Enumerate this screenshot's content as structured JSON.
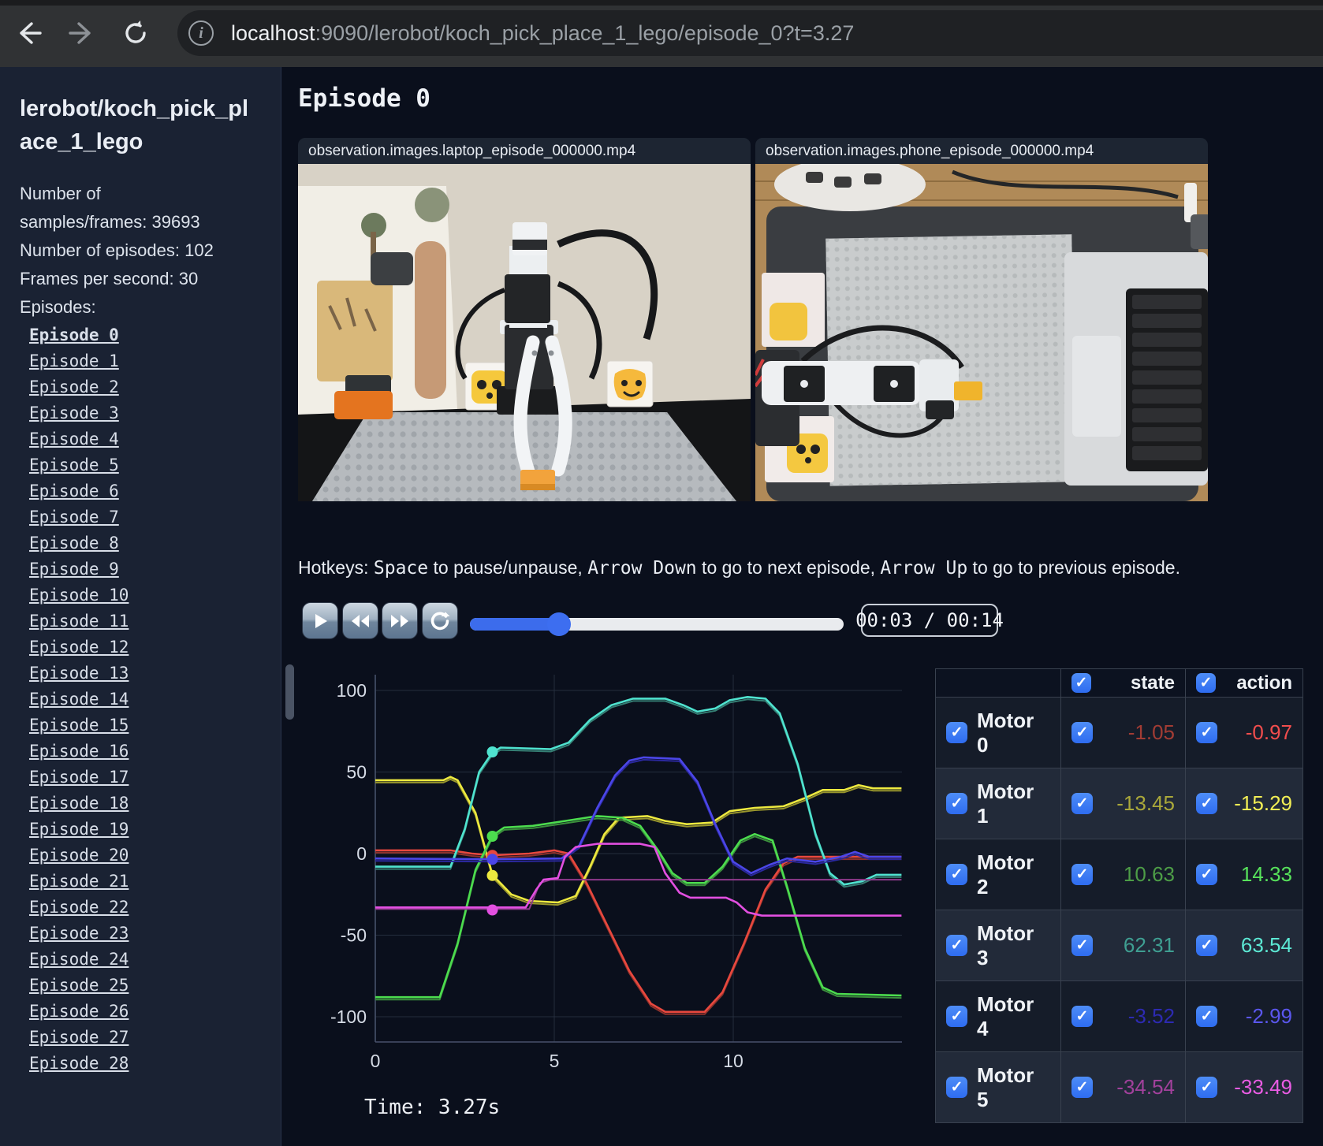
{
  "browser": {
    "url_host": "localhost",
    "url_rest": ":9090/lerobot/koch_pick_place_1_lego/episode_0?t=3.27"
  },
  "sidebar": {
    "title": "lerobot/koch_pick_place_1_lego",
    "stats": [
      "Number of samples/frames: 39693 ",
      "Number of episodes: 102 ",
      "Frames per second: 30"
    ],
    "episodes_label": "Episodes:",
    "active_episode": "Episode 0",
    "episodes": [
      "Episode 0",
      "Episode 1",
      "Episode 2",
      "Episode 3",
      "Episode 4",
      "Episode 5",
      "Episode 6",
      "Episode 7",
      "Episode 8",
      "Episode 9",
      "Episode 10",
      "Episode 11",
      "Episode 12",
      "Episode 13",
      "Episode 14",
      "Episode 15",
      "Episode 16",
      "Episode 17",
      "Episode 18",
      "Episode 19",
      "Episode 20",
      "Episode 21",
      "Episode 22",
      "Episode 23",
      "Episode 24",
      "Episode 25",
      "Episode 26",
      "Episode 27",
      "Episode 28"
    ]
  },
  "main": {
    "heading": "Episode 0",
    "videos": [
      {
        "title": "observation.images.laptop_episode_000000.mp4"
      },
      {
        "title": "observation.images.phone_episode_000000.mp4"
      }
    ],
    "hotkeys": {
      "prefix": "Hotkeys: ",
      "key_space": "Space",
      "mid1": " to pause/unpause, ",
      "key_down": "Arrow Down",
      "mid2": " to go to next episode, ",
      "key_up": "Arrow Up",
      "mid3": " to go to previous episode."
    },
    "player": {
      "time_display": "00:03 / 00:14",
      "progress_pct": 23.8
    },
    "time_label": "Time: 3.27s"
  },
  "chart_data": {
    "type": "line",
    "title": "",
    "xlabel": "",
    "ylabel": "",
    "xticks": [
      0,
      5,
      10
    ],
    "yticks": [
      100,
      50,
      0,
      -50,
      -100
    ],
    "xlim": [
      0,
      14.7
    ],
    "ylim": [
      -115,
      110
    ],
    "grid": true,
    "legend_position": "none",
    "current_time": 3.27,
    "series": [
      {
        "name": "Motor 0",
        "color": "#e8483e",
        "state_color": "#8f322c",
        "marker_value": -1.05,
        "points": [
          [
            0,
            2
          ],
          [
            2.1,
            2
          ],
          [
            2.7,
            0
          ],
          [
            3.27,
            -1
          ],
          [
            4.3,
            0
          ],
          [
            5.0,
            2
          ],
          [
            5.4,
            0
          ],
          [
            5.9,
            -18
          ],
          [
            6.5,
            -45
          ],
          [
            7.1,
            -72
          ],
          [
            7.7,
            -92
          ],
          [
            8.1,
            -97
          ],
          [
            9.2,
            -97
          ],
          [
            9.7,
            -85
          ],
          [
            10.3,
            -55
          ],
          [
            10.9,
            -22
          ],
          [
            11.4,
            -6
          ],
          [
            11.8,
            -2
          ],
          [
            14.7,
            -2
          ]
        ]
      },
      {
        "name": "Motor 1",
        "color": "#ede93f",
        "state_color": "#98952c",
        "marker_value": -13.45,
        "points": [
          [
            0,
            45
          ],
          [
            1.9,
            45
          ],
          [
            2.1,
            47
          ],
          [
            2.3,
            45
          ],
          [
            2.8,
            25
          ],
          [
            3.27,
            -13
          ],
          [
            3.8,
            -25
          ],
          [
            4.3,
            -29
          ],
          [
            5.1,
            -30
          ],
          [
            5.6,
            -26
          ],
          [
            6.0,
            -8
          ],
          [
            6.4,
            12
          ],
          [
            6.8,
            22
          ],
          [
            7.6,
            23
          ],
          [
            8.1,
            20
          ],
          [
            8.7,
            18
          ],
          [
            9.4,
            19
          ],
          [
            9.9,
            26
          ],
          [
            10.6,
            28
          ],
          [
            11.4,
            29
          ],
          [
            12.0,
            34
          ],
          [
            12.5,
            39
          ],
          [
            13.1,
            39
          ],
          [
            13.5,
            42
          ],
          [
            13.9,
            40
          ],
          [
            14.7,
            40
          ]
        ]
      },
      {
        "name": "Motor 2",
        "color": "#4cdc4e",
        "state_color": "#3b8f3c",
        "marker_value": 10.63,
        "points": [
          [
            0,
            -88
          ],
          [
            1.8,
            -88
          ],
          [
            2.3,
            -55
          ],
          [
            2.8,
            -10
          ],
          [
            3.27,
            11
          ],
          [
            3.6,
            16
          ],
          [
            4.4,
            17
          ],
          [
            5.3,
            20
          ],
          [
            6.2,
            23
          ],
          [
            6.9,
            22
          ],
          [
            7.4,
            17
          ],
          [
            7.9,
            2
          ],
          [
            8.3,
            -12
          ],
          [
            8.7,
            -18
          ],
          [
            9.2,
            -18
          ],
          [
            9.7,
            -8
          ],
          [
            10.2,
            8
          ],
          [
            10.6,
            12
          ],
          [
            11.1,
            8
          ],
          [
            11.5,
            -20
          ],
          [
            12.0,
            -58
          ],
          [
            12.5,
            -82
          ],
          [
            12.9,
            -86
          ],
          [
            14.7,
            -87
          ]
        ]
      },
      {
        "name": "Motor 3",
        "color": "#4fe3cf",
        "state_color": "#357f74",
        "marker_value": 62.31,
        "points": [
          [
            0,
            -8
          ],
          [
            2.1,
            -8
          ],
          [
            2.5,
            15
          ],
          [
            2.9,
            50
          ],
          [
            3.27,
            62
          ],
          [
            3.5,
            65
          ],
          [
            4.9,
            64
          ],
          [
            5.4,
            68
          ],
          [
            6.0,
            82
          ],
          [
            6.6,
            91
          ],
          [
            7.2,
            95
          ],
          [
            8.1,
            95
          ],
          [
            8.6,
            91
          ],
          [
            9.0,
            87
          ],
          [
            9.5,
            89
          ],
          [
            9.9,
            94
          ],
          [
            10.4,
            96
          ],
          [
            10.9,
            95
          ],
          [
            11.3,
            86
          ],
          [
            11.8,
            55
          ],
          [
            12.3,
            12
          ],
          [
            12.7,
            -12
          ],
          [
            13.1,
            -19
          ],
          [
            13.6,
            -17
          ],
          [
            14.0,
            -13
          ],
          [
            14.7,
            -13
          ]
        ]
      },
      {
        "name": "Motor 4",
        "color": "#4b46e8",
        "state_color": "#2b289e",
        "marker_value": -3.52,
        "points": [
          [
            0,
            -3
          ],
          [
            3.27,
            -3.5
          ],
          [
            5.2,
            -3
          ],
          [
            5.7,
            5
          ],
          [
            6.2,
            28
          ],
          [
            6.7,
            48
          ],
          [
            7.1,
            57
          ],
          [
            7.5,
            59
          ],
          [
            8.5,
            58
          ],
          [
            9.0,
            44
          ],
          [
            9.5,
            18
          ],
          [
            10.0,
            -5
          ],
          [
            10.5,
            -12
          ],
          [
            11.0,
            -7
          ],
          [
            11.5,
            -3
          ],
          [
            12.3,
            -5
          ],
          [
            13.0,
            -2
          ],
          [
            13.4,
            1
          ],
          [
            13.8,
            -2
          ],
          [
            14.7,
            -2
          ]
        ]
      },
      {
        "name": "Motor 5",
        "color": "#e24fe0",
        "state_color": "#8f3a8c",
        "marker_value": -34.54,
        "points": [
          [
            0,
            -33
          ],
          [
            3.27,
            -33
          ],
          [
            4.2,
            -33
          ],
          [
            4.5,
            -22
          ],
          [
            4.7,
            -16
          ],
          [
            5.1,
            -15
          ],
          [
            5.3,
            -2
          ],
          [
            5.6,
            4
          ],
          [
            6.2,
            6
          ],
          [
            7.4,
            6
          ],
          [
            7.8,
            4
          ],
          [
            8.1,
            -12
          ],
          [
            8.5,
            -24
          ],
          [
            8.8,
            -27
          ],
          [
            9.8,
            -27
          ],
          [
            10.1,
            -30
          ],
          [
            10.4,
            -36
          ],
          [
            10.8,
            -38
          ],
          [
            14.7,
            -38
          ]
        ],
        "state_points": [
          [
            0,
            -34
          ],
          [
            4.3,
            -34
          ],
          [
            4.6,
            -18
          ],
          [
            4.9,
            -16
          ],
          [
            14.7,
            -16
          ]
        ]
      }
    ]
  },
  "table": {
    "state_header": "state",
    "action_header": "action",
    "rows": [
      {
        "name": "Motor 0",
        "state": "-1.05",
        "action": "-0.97",
        "state_color": "#a23c34",
        "action_color": "#f14d4d"
      },
      {
        "name": "Motor 1",
        "state": "-13.45",
        "action": "-15.29",
        "state_color": "#aaa83a",
        "action_color": "#f2ee55"
      },
      {
        "name": "Motor 2",
        "state": "10.63",
        "action": "14.33",
        "state_color": "#4d9d47",
        "action_color": "#57e25b"
      },
      {
        "name": "Motor 3",
        "state": "62.31",
        "action": "63.54",
        "state_color": "#3f9f92",
        "action_color": "#5ce8d4"
      },
      {
        "name": "Motor 4",
        "state": "-3.52",
        "action": "-2.99",
        "state_color": "#2d2ab2",
        "action_color": "#5b57ee"
      },
      {
        "name": "Motor 5",
        "state": "-34.54",
        "action": "-33.49",
        "state_color": "#a2419c",
        "action_color": "#ea5ce4"
      }
    ]
  }
}
